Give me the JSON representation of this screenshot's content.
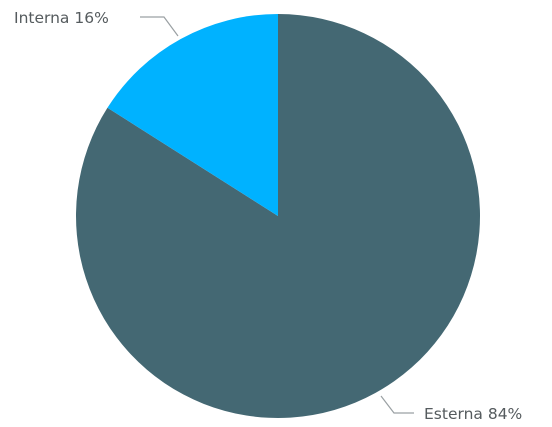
{
  "chart_data": {
    "type": "pie",
    "slices": [
      {
        "name": "Esterna",
        "value": 84,
        "label": "Esterna 84%",
        "color": "#446873"
      },
      {
        "name": "Interna",
        "value": 16,
        "label": "Interna 16%",
        "color": "#00b2ff"
      }
    ],
    "start_angle_deg": 0,
    "direction": "clockwise",
    "background": "#ffffff"
  }
}
